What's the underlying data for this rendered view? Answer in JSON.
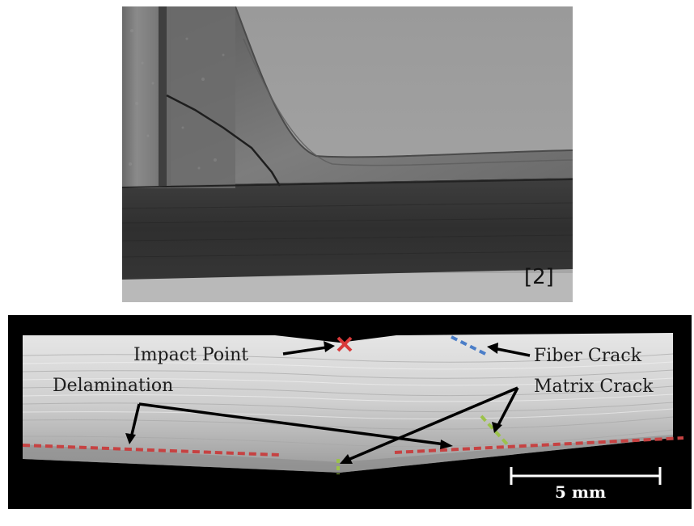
{
  "photo": {
    "reference_label": "[2]"
  },
  "scan": {
    "annotations": {
      "impact_point": "Impact Point",
      "fiber_crack": "Fiber Crack",
      "delamination": "Delamination",
      "matrix_crack": "Matrix Crack"
    },
    "scale_bar_label": "5 mm",
    "colors": {
      "impact_marker": "#d83a3a",
      "fiber_crack": "#4b7ec8",
      "matrix_crack": "#9cc24a",
      "delamination": "#c64242",
      "arrows": "#000000"
    }
  }
}
